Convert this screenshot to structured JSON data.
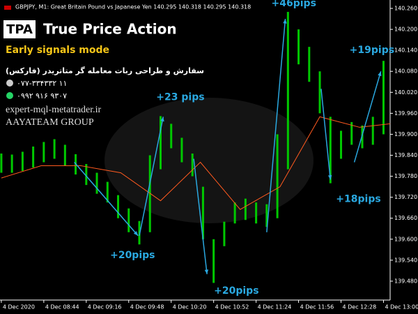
{
  "header": {
    "symbol_line": "GBPJPY, M1:  Great Britain Pound vs Japanese Yen  140.295 140.318 140.295 140.318",
    "logo": "TPA",
    "title": "True Price Action",
    "mode": "Early signals mode",
    "persian_line": "سفارش و طراحی ربات معامله گر متاتریدر (فارکس)",
    "phone": "۰۷۷-۳۳۴۳۳۲ ۱۱",
    "whatsapp": "۰۹۹۲ ۹۱۶ ۹۳۰۷",
    "website": "expert-mql-metatrader.ir",
    "team": "AAYATEAM GROUP"
  },
  "chart_data": {
    "type": "range-bar",
    "xlim": [
      -1,
      293
    ],
    "xticks": [
      {
        "value": 0,
        "label": "4 Dec 2020"
      },
      {
        "value": 32,
        "label": "4 Dec 08:44"
      },
      {
        "value": 64,
        "label": "4 Dec 09:16"
      },
      {
        "value": 96,
        "label": "4 Dec 09:48"
      },
      {
        "value": 128,
        "label": "4 Dec 10:20"
      },
      {
        "value": 160,
        "label": "4 Dec 10:52"
      },
      {
        "value": 192,
        "label": "4 Dec 11:24"
      },
      {
        "value": 224,
        "label": "4 Dec 11:56"
      },
      {
        "value": 256,
        "label": "4 Dec 12:28"
      },
      {
        "value": 288,
        "label": "4 Dec 13:00"
      }
    ],
    "ylim": [
      139.426,
      140.284
    ],
    "yticks": [
      {
        "value": 140.26,
        "label": "140.260"
      },
      {
        "value": 140.2,
        "label": "140.200"
      },
      {
        "value": 140.14,
        "label": "140.140"
      },
      {
        "value": 140.08,
        "label": "140.080"
      },
      {
        "value": 140.02,
        "label": "140.020"
      },
      {
        "value": 139.96,
        "label": "139.960"
      },
      {
        "value": 139.9,
        "label": "139.900"
      },
      {
        "value": 139.84,
        "label": "139.840"
      },
      {
        "value": 139.78,
        "label": "139.780"
      },
      {
        "value": 139.72,
        "label": "139.720"
      },
      {
        "value": 139.66,
        "label": "139.660"
      },
      {
        "value": 139.6,
        "label": "139.600"
      },
      {
        "value": 139.54,
        "label": "139.540"
      },
      {
        "value": 139.48,
        "label": "139.480"
      }
    ],
    "series": [
      {
        "color": "#00c800",
        "x": [
          0,
          8,
          16,
          24,
          32,
          40,
          48,
          56,
          64,
          72,
          80,
          88,
          96,
          104,
          112,
          120,
          128,
          136,
          144,
          152,
          160,
          168,
          176,
          184,
          192,
          200,
          208,
          216,
          224,
          232,
          240,
          248,
          256,
          264,
          272,
          280,
          288
        ],
        "high": [
          139.845,
          139.842,
          139.85,
          139.865,
          139.878,
          139.886,
          139.87,
          139.843,
          139.815,
          139.79,
          139.764,
          139.726,
          139.688,
          139.652,
          139.84,
          139.952,
          139.93,
          139.89,
          139.845,
          139.75,
          139.6,
          139.65,
          139.705,
          139.716,
          139.705,
          139.7,
          139.9,
          140.25,
          140.2,
          140.15,
          140.08,
          139.95,
          139.91,
          139.935,
          139.925,
          139.95,
          140.11
        ],
        "low": [
          139.79,
          139.79,
          139.795,
          139.805,
          139.82,
          139.83,
          139.81,
          139.785,
          139.755,
          139.73,
          139.705,
          139.66,
          139.62,
          139.585,
          139.62,
          139.8,
          139.86,
          139.82,
          139.78,
          139.6,
          139.475,
          139.58,
          139.645,
          139.655,
          139.645,
          139.635,
          139.66,
          139.8,
          140.1,
          140.05,
          139.96,
          139.76,
          139.83,
          139.87,
          139.86,
          139.87,
          139.9
        ]
      },
      {
        "color": "#ff5a1f",
        "x": [
          0,
          30,
          60,
          90,
          120,
          150,
          180,
          210,
          240,
          270,
          293
        ],
        "values": [
          139.775,
          139.81,
          139.81,
          139.79,
          139.71,
          139.82,
          139.685,
          139.75,
          139.95,
          139.92,
          139.93
        ]
      }
    ],
    "annotations": [
      {
        "label": "+20pips",
        "x1": 55,
        "y1": 139.82,
        "x2": 103,
        "y2": 139.61
      },
      {
        "label": "+23 pips",
        "x1": 104,
        "y1": 139.61,
        "x2": 122,
        "y2": 139.95
      },
      {
        "label": "+20pips",
        "x1": 145,
        "y1": 139.83,
        "x2": 155,
        "y2": 139.5
      },
      {
        "label": "+46pips",
        "x1": 200,
        "y1": 139.62,
        "x2": 214,
        "y2": 140.23
      },
      {
        "label": "+18pips",
        "x1": 241,
        "y1": 140.03,
        "x2": 248,
        "y2": 139.77
      },
      {
        "label": "+19pips",
        "x1": 266,
        "y1": 139.82,
        "x2": 286,
        "y2": 140.08
      }
    ],
    "annotation_color": "#2aa8e0"
  }
}
